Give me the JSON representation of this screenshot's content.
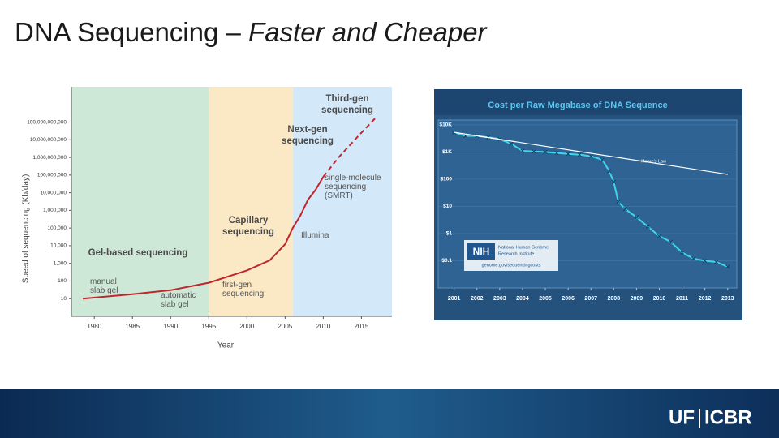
{
  "title": {
    "main": "DNA Sequencing – ",
    "emphasis": "Faster and Cheaper"
  },
  "chart_data": [
    {
      "type": "line",
      "y_label": "Speed of sequencing (Kb/day)",
      "x_label": "Year",
      "log_y": true,
      "xlim": [
        1977,
        2019
      ],
      "ylim": [
        1,
        10000000000000
      ],
      "xticks": [
        1980,
        1985,
        1990,
        1995,
        2000,
        2005,
        2010,
        2015
      ],
      "yticks": [
        {
          "value": 10,
          "label": "10"
        },
        {
          "value": 100,
          "label": "100"
        },
        {
          "value": 1000,
          "label": "1,000"
        },
        {
          "value": 10000,
          "label": "10,000"
        },
        {
          "value": 100000,
          "label": "100,000"
        },
        {
          "value": 1000000,
          "label": "1,000,000"
        },
        {
          "value": 10000000,
          "label": "10,000,000"
        },
        {
          "value": 100000000,
          "label": "100,000,000"
        },
        {
          "value": 1000000000,
          "label": "1,000,000,000"
        },
        {
          "value": 10000000000,
          "label": "10,000,000,000"
        },
        {
          "value": 100000000000,
          "label": "100,000,000,000"
        }
      ],
      "regions": [
        {
          "start": 1977,
          "end": 1995,
          "color": "#cde8d6"
        },
        {
          "start": 1995,
          "end": 2006,
          "color": "#fbe8c4"
        },
        {
          "start": 2006,
          "end": 2019,
          "color": "#d3e8f8"
        }
      ],
      "annotations": [
        {
          "lines": [
            "Gel-based sequencing"
          ],
          "bold": true
        },
        {
          "lines": [
            "Capillary",
            "sequencing"
          ],
          "bold": true
        },
        {
          "lines": [
            "Next-gen",
            "sequencing"
          ],
          "bold": true
        },
        {
          "lines": [
            "Third-gen",
            "sequencing"
          ],
          "bold": true
        },
        {
          "lines": [
            "manual",
            "slab gel"
          ],
          "bold": false
        },
        {
          "lines": [
            "automatic",
            "slab gel"
          ],
          "bold": false
        },
        {
          "lines": [
            "first-gen",
            "sequencing"
          ],
          "bold": false
        },
        {
          "lines": [
            "Illumina"
          ],
          "bold": false
        },
        {
          "lines": [
            "single-molecule",
            "sequencing",
            "(SMRT)"
          ],
          "bold": false
        }
      ],
      "series": [
        {
          "color": "#c0272d",
          "dash": false,
          "x": [
            1978.5,
            1985,
            1990,
            1995,
            2000,
            2003,
            2005,
            2006,
            2007,
            2008,
            2009,
            2010
          ],
          "values": [
            10,
            18,
            30,
            80,
            400,
            1500,
            12000,
            100000,
            500000,
            4000000,
            15000000,
            80000000
          ]
        },
        {
          "color": "#c0272d",
          "dash": true,
          "x": [
            2010,
            2012,
            2015,
            2017
          ],
          "values": [
            80000000,
            1000000000,
            25000000000,
            200000000000
          ]
        }
      ]
    },
    {
      "type": "line",
      "title": "Cost per Raw Megabase of DNA Sequence",
      "log_y": true,
      "xlim": [
        2000.3,
        2013.4
      ],
      "ylim": [
        0.01,
        15000
      ],
      "xticks": [
        2001,
        2002,
        2003,
        2004,
        2005,
        2006,
        2007,
        2008,
        2009,
        2010,
        2011,
        2012,
        2013
      ],
      "yticks": [
        {
          "value": 10000,
          "label": "$10K"
        },
        {
          "value": 1000,
          "label": "$1K"
        },
        {
          "value": 100,
          "label": "$100"
        },
        {
          "value": 10,
          "label": "$10"
        },
        {
          "value": 1,
          "label": "$1"
        },
        {
          "value": 0.1,
          "label": "$0.1"
        }
      ],
      "series": [
        {
          "color": "#3fd6ec",
          "marker": "x",
          "x": [
            2001,
            2001.5,
            2002,
            2002.5,
            2003,
            2003.5,
            2004,
            2004.5,
            2005,
            2005.5,
            2006,
            2006.5,
            2007,
            2007.5,
            2007.8,
            2008,
            2008.2,
            2008.5,
            2009,
            2009.5,
            2010,
            2010.5,
            2011,
            2011.5,
            2012,
            2012.5,
            2013
          ],
          "values": [
            5300,
            3900,
            3900,
            3500,
            3000,
            2000,
            1100,
            1050,
            1000,
            920,
            850,
            800,
            700,
            520,
            200,
            80,
            15,
            8,
            4,
            1.8,
            0.8,
            0.5,
            0.2,
            0.12,
            0.1,
            0.09,
            0.06
          ]
        },
        {
          "name": "Moore's Law",
          "color": "#ffffff",
          "marker": "none",
          "x": [
            2001,
            2013
          ],
          "values": [
            5300,
            150
          ]
        }
      ]
    }
  ],
  "logo": {
    "acronym": "NIH",
    "institute": [
      "National Human Genome",
      "Research Institute"
    ],
    "url": "genome.gov/sequencingcosts"
  },
  "footer": {
    "left": "UF",
    "right": "ICBR"
  }
}
